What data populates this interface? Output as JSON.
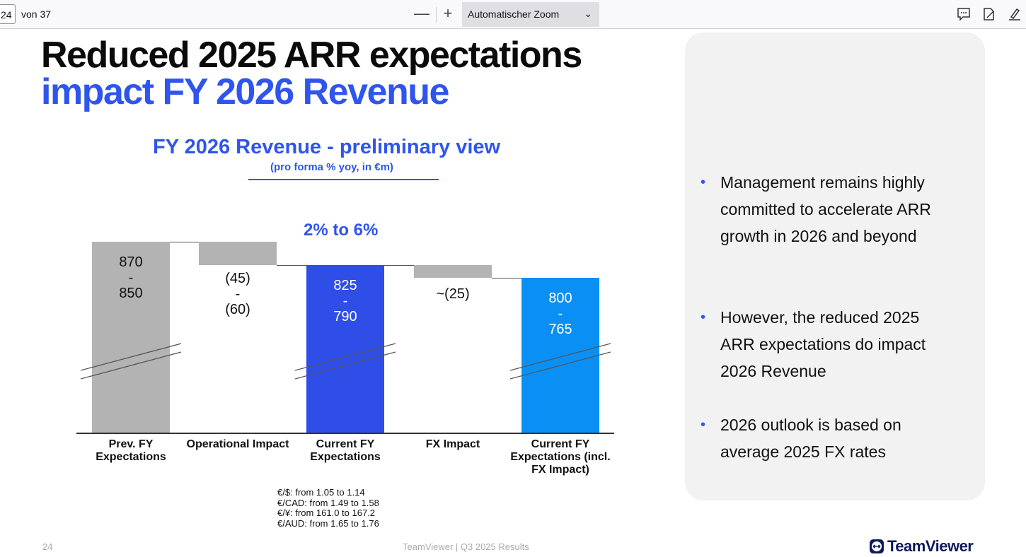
{
  "toolbar": {
    "page": "24",
    "of_pages": "von 37",
    "zoom_out": "—",
    "zoom_in": "+",
    "zoom_select": "Automatischer Zoom"
  },
  "slide": {
    "title_line1": "Reduced 2025 ARR expectations",
    "title_line2": "impact FY 2026 Revenue",
    "bullets": [
      "Management remains highly committed to accelerate ARR growth in 2026 and beyond",
      "However, the reduced 2025 ARR expectations do impact 2026 Revenue",
      "2026 outlook is based on average 2025 FX rates"
    ],
    "fx_notes": [
      "€/$: from 1.05 to 1.14",
      "€/CAD: from 1.49 to 1.58",
      "€/¥: from 161.0 to 167.2",
      "€/AUD: from 1.65 to 1.76"
    ],
    "page_number": "24",
    "footer": "TeamViewer | Q3 2025 Results",
    "logo": "TeamViewer"
  },
  "chart_data": {
    "type": "bar",
    "subtype": "waterfall",
    "title": "FY 2026 Revenue - preliminary view",
    "subtitle": "(pro forma % yoy, in €m)",
    "annotation": "2% to 6%",
    "categories": [
      "Prev. FY Expectations",
      "Operational Impact",
      "Current FY Expectations",
      "FX Impact",
      "Current FY Expectations (incl. FX Impact)"
    ],
    "values_high": [
      870,
      -45,
      825,
      -25,
      800
    ],
    "values_low": [
      850,
      -60,
      790,
      null,
      765
    ],
    "labels": [
      [
        "870",
        "-",
        "850"
      ],
      [
        "(45)",
        "-",
        "(60)"
      ],
      [
        "825",
        "-",
        "790"
      ],
      [
        "~(25)"
      ],
      [
        "800",
        "-",
        "765"
      ]
    ],
    "axis_broken": true,
    "colors": {
      "total_prev": "#b3b3b3",
      "delta": "#b3b3b3",
      "current": "#2f4ee8",
      "final": "#0a90f5"
    }
  }
}
